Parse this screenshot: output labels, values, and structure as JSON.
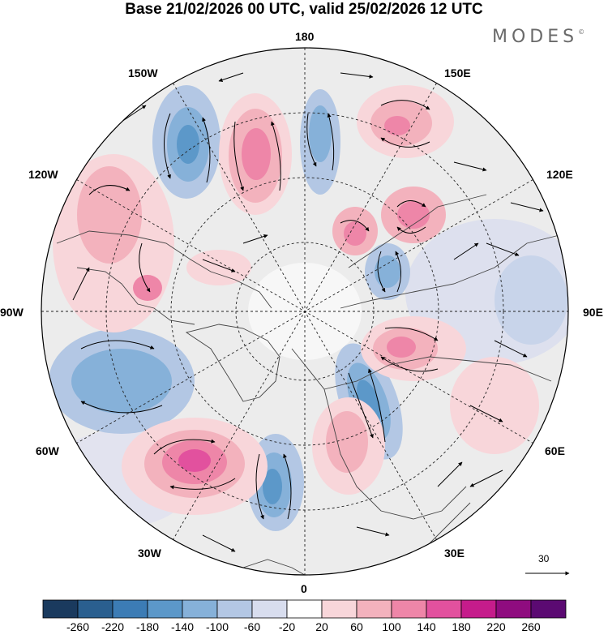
{
  "title": "Base 21/02/2026 00 UTC, valid 25/02/2026 12 UTC",
  "logo": {
    "text": "MODES",
    "mark": "©"
  },
  "projection": "north-polar-stereographic",
  "longitude_labels": {
    "top": "180",
    "bottom": "0",
    "left": "90W",
    "right": "90E",
    "nw1": "150W",
    "nw2": "120W",
    "sw1": "60W",
    "sw2": "30W",
    "ne1": "150E",
    "ne2": "120E",
    "se1": "60E",
    "se2": "30E"
  },
  "reference_vector": {
    "value": "30"
  },
  "colorbar": {
    "ticks": [
      "-260",
      "-220",
      "-180",
      "-140",
      "-100",
      "-60",
      "-20",
      "20",
      "60",
      "100",
      "140",
      "180",
      "220",
      "260"
    ],
    "colors": [
      "#1a3a5e",
      "#2a5f8f",
      "#3c7cb5",
      "#5c98c9",
      "#86b1d9",
      "#b3c7e4",
      "#d8ddee",
      "#ffffff",
      "#f8d6da",
      "#f3b2bd",
      "#ee86a8",
      "#e2519e",
      "#c51c8b",
      "#8f0c7f",
      "#5b0a72"
    ]
  },
  "colors": {
    "land": "#444444",
    "grid": "#222222",
    "background_field": "#ececec"
  }
}
